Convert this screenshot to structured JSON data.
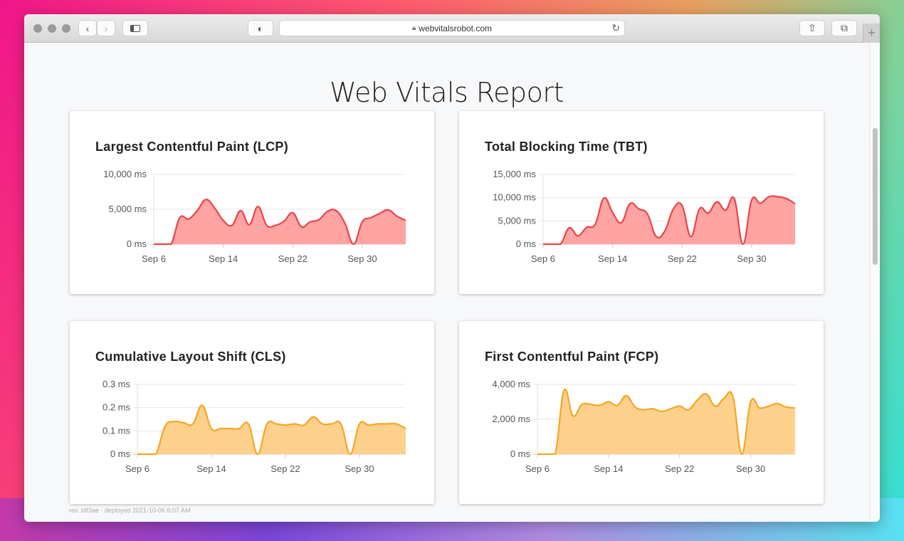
{
  "browser": {
    "url": "webvitalsrobot.com",
    "new_tab": "+"
  },
  "page": {
    "title": "Web Vitals Report",
    "footer": "rev. b83ae · deployed 2021-10-06 6:07 AM"
  },
  "colors": {
    "red_line": "#e84549",
    "red_fill": "#ffa3a3",
    "orange_line": "#f5a623",
    "orange_fill": "#fdd08c"
  },
  "chart_data": [
    {
      "type": "area",
      "title": "Largest Contentful Paint (LCP)",
      "x_start": "Sep 6",
      "x_ticks": [
        "Sep 6",
        "Sep 14",
        "Sep 22",
        "Sep 30"
      ],
      "x_tick_index": [
        0,
        8,
        16,
        24
      ],
      "y_ticks": [
        "0 ms",
        "5,000 ms",
        "10,000 ms"
      ],
      "ylim": [
        0,
        10000
      ],
      "color": "red",
      "values": [
        0,
        0,
        0,
        3800,
        3600,
        4800,
        6400,
        5200,
        3400,
        2700,
        4800,
        2800,
        5400,
        2700,
        2700,
        3300,
        4500,
        2500,
        3200,
        3500,
        4700,
        4800,
        3000,
        0,
        3200,
        3800,
        4400,
        4900,
        4000,
        3400
      ]
    },
    {
      "type": "area",
      "title": "Total Blocking Time (TBT)",
      "x_start": "Sep 6",
      "x_ticks": [
        "Sep 6",
        "Sep 14",
        "Sep 22",
        "Sep 30"
      ],
      "x_tick_index": [
        0,
        8,
        16,
        24
      ],
      "y_ticks": [
        "0 ms",
        "5,000 ms",
        "10,000 ms",
        "15,000 ms"
      ],
      "ylim": [
        0,
        15000
      ],
      "color": "red",
      "values": [
        0,
        0,
        0,
        3500,
        1800,
        3600,
        4300,
        9900,
        6800,
        4600,
        8700,
        7600,
        6500,
        1700,
        2800,
        7600,
        8300,
        1600,
        7600,
        6700,
        9100,
        7300,
        9800,
        0,
        9500,
        8800,
        10200,
        10200,
        9800,
        8700
      ]
    },
    {
      "type": "area",
      "title": "Cumulative Layout Shift (CLS)",
      "x_start": "Sep 6",
      "x_ticks": [
        "Sep 6",
        "Sep 14",
        "Sep 22",
        "Sep 30"
      ],
      "x_tick_index": [
        0,
        8,
        16,
        24
      ],
      "y_ticks": [
        "0 ms",
        "0.1 ms",
        "0.2 ms",
        "0.3 ms"
      ],
      "ylim": [
        0,
        0.3
      ],
      "color": "orange",
      "values": [
        0,
        0,
        0,
        0.12,
        0.14,
        0.135,
        0.13,
        0.21,
        0.11,
        0.11,
        0.11,
        0.11,
        0.13,
        0,
        0.13,
        0.13,
        0.125,
        0.13,
        0.125,
        0.16,
        0.13,
        0.13,
        0.13,
        0,
        0.13,
        0.125,
        0.13,
        0.13,
        0.13,
        0.11
      ]
    },
    {
      "type": "area",
      "title": "First Contentful Paint (FCP)",
      "x_start": "Sep 6",
      "x_ticks": [
        "Sep 6",
        "Sep 14",
        "Sep 22",
        "Sep 30"
      ],
      "x_tick_index": [
        0,
        8,
        16,
        24
      ],
      "y_ticks": [
        "0 ms",
        "2,000 ms",
        "4,000 ms"
      ],
      "ylim": [
        0,
        4000
      ],
      "color": "orange",
      "values": [
        0,
        0,
        0,
        3650,
        2200,
        2850,
        2850,
        2800,
        3000,
        2800,
        3350,
        2700,
        2550,
        2600,
        2450,
        2600,
        2750,
        2550,
        3100,
        3450,
        2750,
        3200,
        3300,
        0,
        3000,
        2650,
        2750,
        2900,
        2700,
        2650
      ]
    }
  ]
}
